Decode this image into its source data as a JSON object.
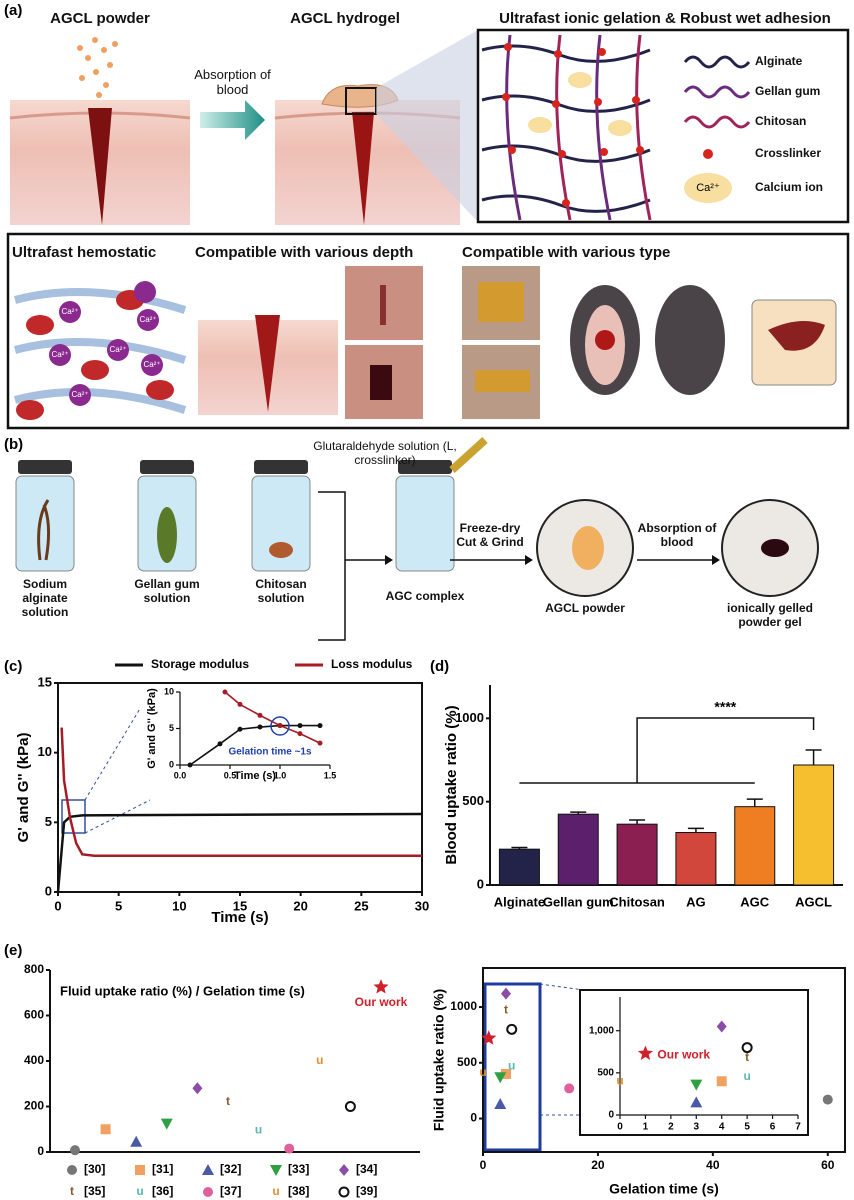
{
  "panel_labels": [
    "(a)",
    "(b)",
    "(c)",
    "(d)",
    "(e)"
  ],
  "figure_a": {
    "powder_title": "AGCL powder",
    "hydrogel_title": "AGCL hydrogel",
    "arrow_label": "Absorption of blood",
    "network_title": "Ultrafast ionic gelation & Robust wet adhesion",
    "legend": [
      "Alginate",
      "Gellan gum",
      "Chitosan",
      "Crosslinker",
      "Calcium ion"
    ],
    "ion": "Ca²⁺",
    "bottom_titles": [
      "Ultrafast hemostatic",
      "Compatible with various depth",
      "Compatible with various type"
    ]
  },
  "figure_b": {
    "crosslinker": "Glutaraldehyde solution (L, crosslinker)",
    "solutions": [
      "Sodium alginate solution",
      "Gellan gum solution",
      "Chitosan solution"
    ],
    "complex": "AGC complex",
    "step1": "Freeze-dry Cut & Grind",
    "step2": "Absorption of blood",
    "powder": "AGCL powder",
    "gel": "ionically gelled powder gel"
  },
  "chart_data": [
    {
      "type": "line",
      "legend": "top",
      "x_label": "Time (s)",
      "y_label": "G' and G'' (kPa)",
      "xlim": [
        0,
        30
      ],
      "xticks": [
        0,
        5,
        10,
        15,
        20,
        25,
        30
      ],
      "ylim": [
        0,
        15
      ],
      "yticks": [
        0,
        5,
        10,
        15
      ],
      "series": [
        {
          "name": "Storage modulus",
          "color": "#111111",
          "x": [
            0,
            0.3,
            0.5,
            1,
            2,
            30
          ],
          "values": [
            0,
            3,
            5,
            5.4,
            5.5,
            5.6
          ]
        },
        {
          "name": "Loss modulus",
          "color": "#a51c24",
          "x": [
            0.3,
            0.5,
            1,
            1.5,
            2,
            3,
            30
          ],
          "values": [
            11.8,
            8,
            5.3,
            3.5,
            2.7,
            2.6,
            2.6
          ]
        }
      ]
    },
    {
      "type": "line",
      "markers": true,
      "x_label": "Time (s)",
      "y_label": "G' and G'' (kPa)",
      "annotation": "Gelation time ~1s",
      "xlim": [
        0,
        1.5
      ],
      "xticks": [
        {
          "value": 0,
          "label": "0.0"
        },
        0.5,
        {
          "value": 1,
          "label": "1.0"
        },
        1.5
      ],
      "ylim": [
        0,
        10
      ],
      "yticks": [
        0,
        5,
        10
      ],
      "series": [
        {
          "color": "#111111",
          "x": [
            0.1,
            0.4,
            0.6,
            0.8,
            1,
            1.2,
            1.4
          ],
          "values": [
            0,
            2.9,
            4.9,
            5.2,
            5.4,
            5.4,
            5.4
          ]
        },
        {
          "color": "#a51c24",
          "x": [
            0.45,
            0.6,
            0.8,
            1,
            1.2,
            1.4
          ],
          "values": [
            10,
            8.3,
            6.8,
            5.4,
            4.3,
            3
          ]
        }
      ]
    },
    {
      "type": "bar",
      "y_label": "Blood uptake ratio (%)",
      "categories": [
        "Alginate",
        "Gellan gum",
        "Chitosan",
        "AG",
        "AGC",
        "AGCL"
      ],
      "values": [
        215,
        425,
        365,
        315,
        470,
        720
      ],
      "errors": [
        10,
        12,
        25,
        25,
        45,
        90
      ],
      "colors": [
        "#23234a",
        "#5c1f6b",
        "#8b1f52",
        "#d2473c",
        "#ef7d22",
        "#f5bf30"
      ],
      "ylim": [
        0,
        1200
      ],
      "yticks": [
        0,
        500,
        1000
      ],
      "significance": "****"
    },
    {
      "type": "scatter",
      "title": "Fluid uptake ratio (%) / Gelation time (s)",
      "annotation": "Our work",
      "ylim": [
        0,
        800
      ],
      "yticks": [
        0,
        200,
        400,
        600,
        800
      ],
      "series": [
        {
          "name": "[30]",
          "color": "#777777",
          "marker": "circle",
          "values": [
            8
          ]
        },
        {
          "name": "[31]",
          "color": "#f0a060",
          "marker": "square",
          "values": [
            100
          ]
        },
        {
          "name": "[32]",
          "color": "#4a5aa8",
          "marker": "triangle",
          "values": [
            45
          ]
        },
        {
          "name": "[33]",
          "color": "#2ea043",
          "marker": "triangle-down",
          "values": [
            125
          ]
        },
        {
          "name": "[34]",
          "color": "#8a4ea8",
          "marker": "diamond",
          "values": [
            280
          ]
        },
        {
          "name": "[35]",
          "color": "#8a5a2a",
          "marker": "t",
          "values": [
            220
          ]
        },
        {
          "name": "[36]",
          "color": "#5ab8b0",
          "marker": "u",
          "values": [
            95
          ]
        },
        {
          "name": "[37]",
          "color": "#e0609a",
          "marker": "circle",
          "values": [
            15
          ]
        },
        {
          "name": "[38]",
          "color": "#e09030",
          "marker": "u",
          "values": [
            400
          ]
        },
        {
          "name": "[39]",
          "color": "#111111",
          "marker": "open-circle",
          "values": [
            200
          ]
        },
        {
          "color": "#d0202a",
          "marker": "star",
          "values": [
            725
          ]
        }
      ]
    },
    {
      "type": "scatter",
      "x_label": "Gelation time (s)",
      "y_label": "Fluid uptake ratio (%)",
      "xlim": [
        0,
        63
      ],
      "xticks": [
        0,
        20,
        40,
        60
      ],
      "ylim": [
        -300,
        1350
      ],
      "yticks": [
        0,
        500,
        1000
      ],
      "series": [
        {
          "color": "#777777",
          "marker": "circle",
          "x": [
            60
          ],
          "values": [
            170
          ]
        },
        {
          "color": "#f0a060",
          "marker": "square",
          "x": [
            4
          ],
          "values": [
            400
          ]
        },
        {
          "color": "#4a5aa8",
          "marker": "triangle",
          "x": [
            3
          ],
          "values": [
            130
          ]
        },
        {
          "color": "#2ea043",
          "marker": "triangle-down",
          "x": [
            3
          ],
          "values": [
            370
          ]
        },
        {
          "color": "#8a4ea8",
          "marker": "diamond",
          "x": [
            4
          ],
          "values": [
            1120
          ]
        },
        {
          "color": "#8a5a2a",
          "marker": "t",
          "x": [
            4
          ],
          "values": [
            970
          ]
        },
        {
          "color": "#5ab8b0",
          "marker": "u",
          "x": [
            5
          ],
          "values": [
            470
          ]
        },
        {
          "color": "#e0609a",
          "marker": "circle",
          "x": [
            15
          ],
          "values": [
            270
          ]
        },
        {
          "color": "#e09030",
          "marker": "u",
          "x": [
            0
          ],
          "values": [
            410
          ]
        },
        {
          "color": "#111111",
          "marker": "open-circle",
          "x": [
            5
          ],
          "values": [
            800
          ]
        },
        {
          "color": "#d0202a",
          "marker": "star",
          "x": [
            1
          ],
          "values": [
            720
          ]
        }
      ]
    },
    {
      "type": "scatter",
      "annotation": "Our work",
      "xlim": [
        0,
        7
      ],
      "xticks": [
        0,
        1,
        2,
        3,
        4,
        5,
        6,
        7
      ],
      "ylim": [
        0,
        1400
      ],
      "yticks": [
        0,
        500,
        {
          "value": 1000,
          "label": "1,000"
        }
      ],
      "series": [
        {
          "color": "#f0a060",
          "marker": "square",
          "x": [
            4
          ],
          "values": [
            400
          ]
        },
        {
          "color": "#4a5aa8",
          "marker": "triangle",
          "x": [
            3
          ],
          "values": [
            150
          ]
        },
        {
          "color": "#2ea043",
          "marker": "triangle-down",
          "x": [
            3
          ],
          "values": [
            360
          ]
        },
        {
          "color": "#8a4ea8",
          "marker": "diamond",
          "x": [
            4
          ],
          "values": [
            1050
          ]
        },
        {
          "color": "#8a5a2a",
          "marker": "t",
          "x": [
            5
          ],
          "values": [
            680
          ]
        },
        {
          "color": "#5ab8b0",
          "marker": "u",
          "x": [
            5
          ],
          "values": [
            450
          ]
        },
        {
          "color": "#e09030",
          "marker": "u",
          "x": [
            0
          ],
          "values": [
            400
          ]
        },
        {
          "color": "#111111",
          "marker": "open-circle",
          "x": [
            5
          ],
          "values": [
            800
          ]
        },
        {
          "color": "#d0202a",
          "marker": "star",
          "x": [
            1
          ],
          "values": [
            730
          ]
        }
      ]
    }
  ]
}
